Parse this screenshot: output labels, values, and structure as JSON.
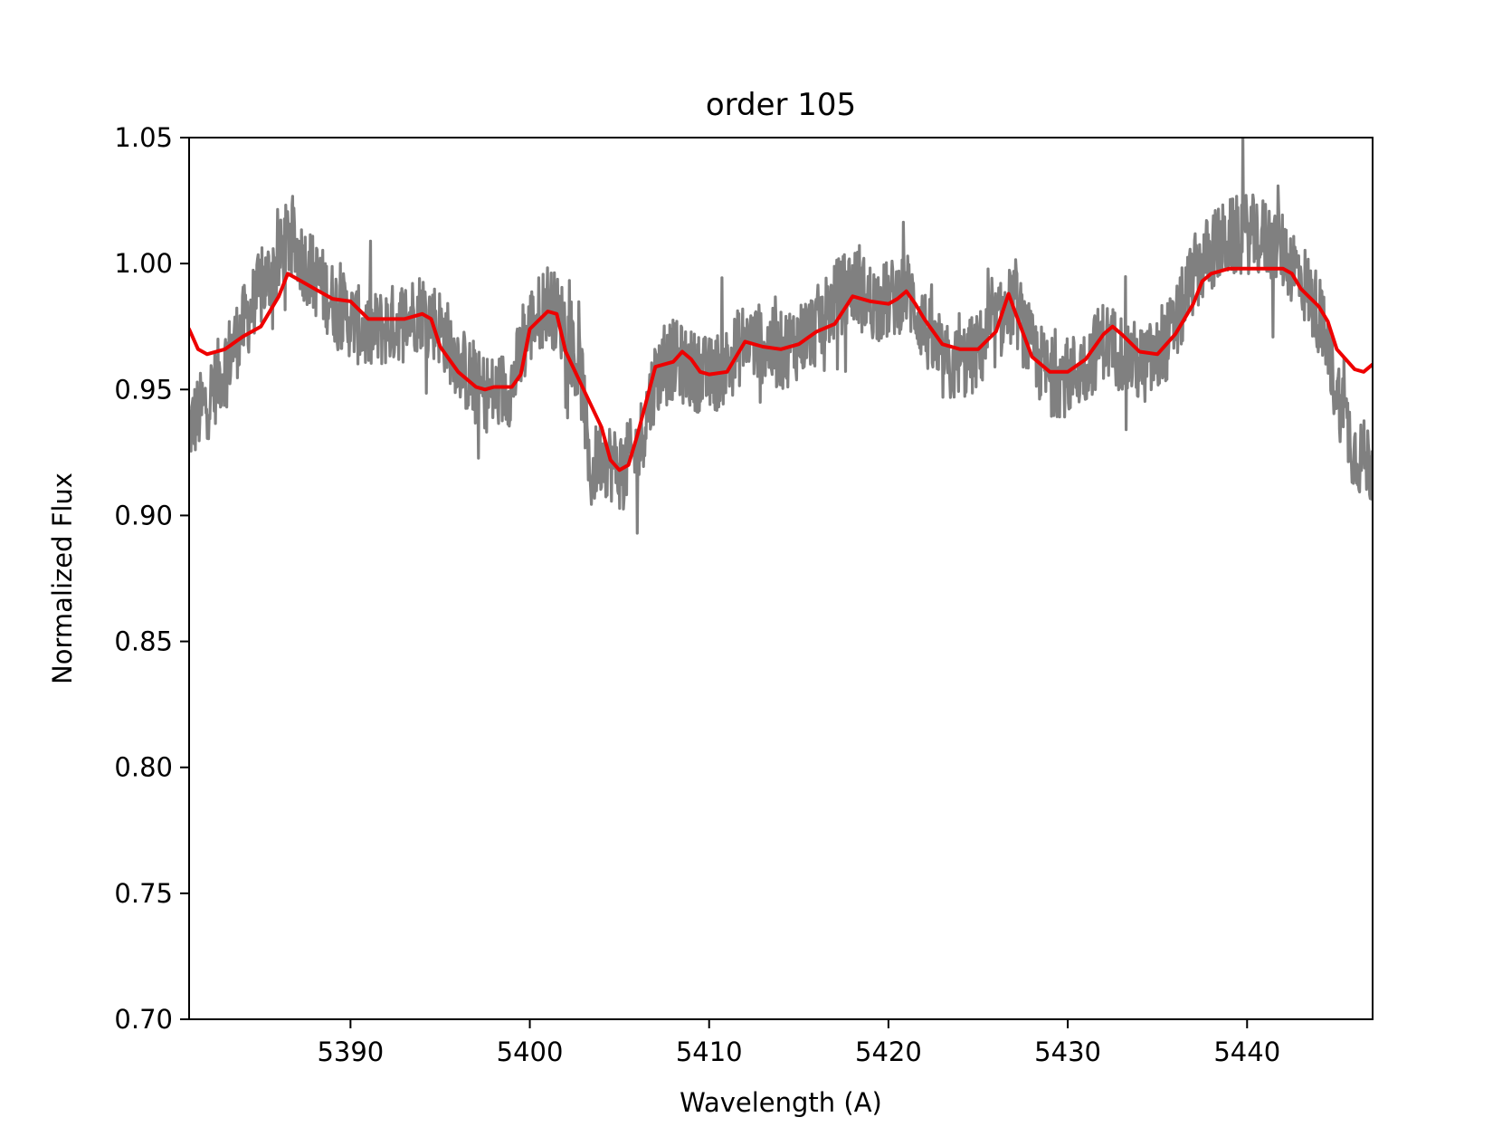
{
  "chart_data": {
    "type": "line",
    "title": "order 105",
    "xlabel": "Wavelength (A)",
    "ylabel": "Normalized Flux",
    "xlim": [
      5381,
      5447
    ],
    "ylim": [
      0.7,
      1.05
    ],
    "xticks": [
      5390,
      5400,
      5410,
      5420,
      5430,
      5440
    ],
    "yticks": [
      0.7,
      0.75,
      0.8,
      0.85,
      0.9,
      0.95,
      1.0,
      1.05
    ],
    "xtick_labels": [
      "5390",
      "5400",
      "5410",
      "5420",
      "5430",
      "5440"
    ],
    "ytick_labels": [
      "0.70",
      "0.75",
      "0.80",
      "0.85",
      "0.90",
      "0.95",
      "1.00",
      "1.05"
    ],
    "grid": false,
    "series": [
      {
        "color": "#808080",
        "style": "noisy observed spectrum",
        "x": [
          5381.0,
          5382.0,
          5383.0,
          5384.0,
          5385.0,
          5386.0,
          5386.5,
          5387.0,
          5388.0,
          5389.0,
          5390.0,
          5391.0,
          5392.0,
          5393.0,
          5394.0,
          5395.0,
          5396.0,
          5397.0,
          5398.0,
          5399.0,
          5400.0,
          5401.0,
          5402.0,
          5403.0,
          5403.3,
          5404.0,
          5405.0,
          5406.0,
          5407.0,
          5408.0,
          5409.0,
          5410.0,
          5411.0,
          5412.0,
          5413.0,
          5414.0,
          5415.0,
          5416.0,
          5417.0,
          5418.0,
          5419.0,
          5420.0,
          5421.0,
          5422.0,
          5423.0,
          5424.0,
          5425.0,
          5426.0,
          5427.0,
          5428.0,
          5429.0,
          5430.0,
          5431.0,
          5432.0,
          5433.0,
          5434.0,
          5435.0,
          5436.0,
          5437.0,
          5438.0,
          5439.0,
          5440.0,
          5441.0,
          5442.0,
          5443.0,
          5444.0,
          5445.0,
          5446.0,
          5447.0
        ],
        "y": [
          0.935,
          0.945,
          0.96,
          0.975,
          0.99,
          1.0,
          1.01,
          1.005,
          0.995,
          0.985,
          0.978,
          0.972,
          0.975,
          0.978,
          0.982,
          0.975,
          0.962,
          0.95,
          0.948,
          0.952,
          0.975,
          0.985,
          0.975,
          0.95,
          0.915,
          0.925,
          0.918,
          0.925,
          0.955,
          0.962,
          0.958,
          0.955,
          0.96,
          0.97,
          0.968,
          0.965,
          0.97,
          0.975,
          0.985,
          0.992,
          0.985,
          0.985,
          0.99,
          0.975,
          0.96,
          0.96,
          0.965,
          0.975,
          0.985,
          0.965,
          0.955,
          0.955,
          0.96,
          0.97,
          0.965,
          0.96,
          0.962,
          0.975,
          0.995,
          1.005,
          1.01,
          1.012,
          1.01,
          1.005,
          0.995,
          0.98,
          0.95,
          0.925,
          0.92
        ]
      },
      {
        "color": "#ee0000",
        "style": "smoothed model fit",
        "x": [
          5381.0,
          5381.5,
          5382.0,
          5383.0,
          5384.0,
          5385.0,
          5386.0,
          5386.5,
          5387.0,
          5388.0,
          5389.0,
          5390.0,
          5391.0,
          5392.0,
          5393.0,
          5394.0,
          5394.5,
          5395.0,
          5396.0,
          5397.0,
          5397.5,
          5398.0,
          5399.0,
          5399.5,
          5400.0,
          5401.0,
          5401.5,
          5402.0,
          5403.0,
          5404.0,
          5404.5,
          5405.0,
          5405.5,
          5406.0,
          5407.0,
          5408.0,
          5408.5,
          5409.0,
          5409.5,
          5410.0,
          5411.0,
          5412.0,
          5413.0,
          5414.0,
          5415.0,
          5416.0,
          5417.0,
          5418.0,
          5419.0,
          5420.0,
          5420.5,
          5421.0,
          5421.5,
          5422.0,
          5423.0,
          5424.0,
          5425.0,
          5426.0,
          5426.7,
          5427.0,
          5428.0,
          5429.0,
          5430.0,
          5431.0,
          5432.0,
          5432.5,
          5433.0,
          5434.0,
          5435.0,
          5436.0,
          5437.0,
          5437.5,
          5438.0,
          5439.0,
          5440.0,
          5441.0,
          5442.0,
          5442.5,
          5443.0,
          5444.0,
          5444.5,
          5445.0,
          5446.0,
          5446.5,
          5447.0
        ],
        "y": [
          0.974,
          0.966,
          0.964,
          0.966,
          0.971,
          0.975,
          0.987,
          0.996,
          0.994,
          0.99,
          0.986,
          0.985,
          0.978,
          0.978,
          0.978,
          0.98,
          0.978,
          0.967,
          0.957,
          0.951,
          0.95,
          0.951,
          0.951,
          0.956,
          0.974,
          0.981,
          0.98,
          0.965,
          0.95,
          0.935,
          0.922,
          0.918,
          0.92,
          0.932,
          0.959,
          0.961,
          0.965,
          0.962,
          0.957,
          0.956,
          0.957,
          0.969,
          0.967,
          0.966,
          0.968,
          0.973,
          0.976,
          0.987,
          0.985,
          0.984,
          0.986,
          0.989,
          0.984,
          0.978,
          0.968,
          0.966,
          0.966,
          0.973,
          0.988,
          0.982,
          0.963,
          0.957,
          0.957,
          0.962,
          0.972,
          0.975,
          0.972,
          0.965,
          0.964,
          0.972,
          0.984,
          0.993,
          0.996,
          0.998,
          0.998,
          0.998,
          0.998,
          0.996,
          0.99,
          0.983,
          0.977,
          0.966,
          0.958,
          0.957,
          0.96
        ]
      }
    ]
  }
}
